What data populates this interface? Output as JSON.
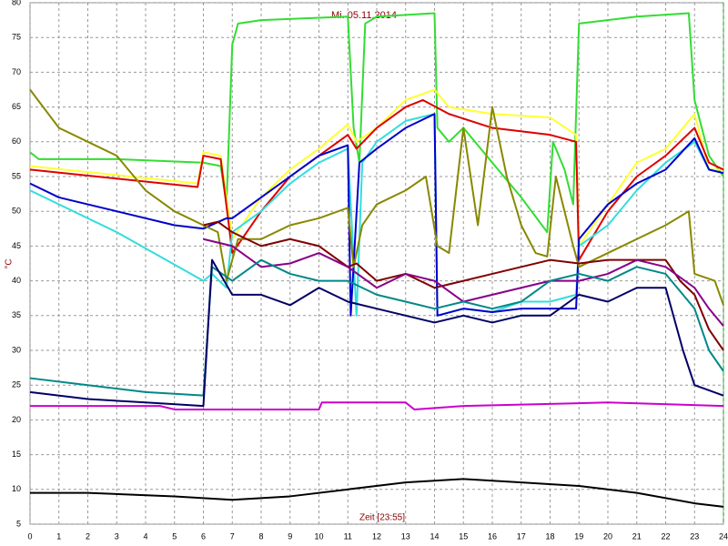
{
  "chart_data": {
    "type": "line",
    "title": "Mi. 05.11.2014",
    "xlabel": "Zeit [23:55]",
    "ylabel": "°C",
    "xlim": [
      0,
      24
    ],
    "ylim": [
      5,
      80
    ],
    "xticks": [
      0,
      1,
      2,
      3,
      4,
      5,
      6,
      7,
      8,
      9,
      10,
      11,
      12,
      13,
      14,
      15,
      16,
      17,
      18,
      19,
      20,
      21,
      22,
      23,
      24
    ],
    "yticks": [
      5,
      10,
      15,
      20,
      25,
      30,
      35,
      40,
      45,
      50,
      55,
      60,
      65,
      70,
      75,
      80
    ],
    "grid": true,
    "series": [
      {
        "color": "#33dd33",
        "x": [
          0,
          0.3,
          3,
          6,
          6.6,
          6.8,
          7.0,
          7.2,
          8,
          11,
          11.2,
          11.4,
          11.6,
          12,
          14,
          14.1,
          14.5,
          15,
          16,
          17,
          17.9,
          18.1,
          18.5,
          18.8,
          19,
          21,
          22.8,
          23,
          23.5,
          24
        ],
        "values": [
          58.5,
          57.5,
          57.5,
          57,
          56.5,
          51,
          74,
          77,
          77.5,
          78,
          62,
          57,
          77,
          78,
          78.5,
          62,
          60,
          62,
          57,
          52,
          47,
          60,
          56,
          51,
          77,
          78,
          78.5,
          66,
          58,
          55
        ]
      },
      {
        "color": "#ffff33",
        "x": [
          0,
          5.8,
          6,
          6.6,
          7,
          8,
          9,
          10,
          11,
          11.3,
          12,
          13,
          14,
          14.5,
          16,
          18,
          18.9,
          19,
          20,
          21,
          22,
          23,
          23.5,
          24
        ],
        "values": [
          56.5,
          54,
          58.5,
          58,
          46,
          52,
          56,
          59,
          62.5,
          60,
          62,
          66,
          67.5,
          65,
          64,
          63.5,
          61,
          45,
          51,
          57,
          59,
          64,
          56,
          56
        ]
      },
      {
        "color": "#dd0000",
        "x": [
          0,
          5.8,
          6,
          6.6,
          7,
          8,
          9,
          10,
          11,
          11.3,
          12,
          13,
          13.6,
          14.5,
          16,
          18,
          18.9,
          19,
          20,
          21,
          22,
          23,
          23.5,
          24
        ],
        "values": [
          56,
          53.5,
          58,
          57.5,
          44,
          50,
          55,
          58,
          61,
          59,
          62,
          65,
          66,
          64,
          62,
          61,
          60,
          43,
          50,
          55,
          58,
          62,
          57,
          56
        ]
      },
      {
        "color": "#33dddd",
        "x": [
          0,
          3,
          6,
          6.3,
          6.8,
          7,
          8,
          9,
          10,
          11,
          11.3,
          11.5,
          12,
          13,
          14,
          14.1,
          15,
          16,
          17,
          18,
          18.9,
          19,
          20,
          21,
          22,
          23,
          23.5,
          24
        ],
        "values": [
          53,
          47,
          40,
          41,
          39,
          47,
          50,
          54,
          57,
          59,
          35,
          57,
          60,
          63,
          64,
          35,
          36,
          35.5,
          37,
          37,
          38,
          45,
          48,
          53,
          57,
          60,
          56,
          55.5
        ]
      },
      {
        "color": "#0000cc",
        "x": [
          0,
          1,
          3,
          5,
          6,
          6.8,
          7,
          8,
          9,
          10,
          11,
          11.1,
          11.4,
          12,
          13,
          14,
          14.1,
          15,
          16,
          17,
          18,
          18.9,
          19,
          20,
          21,
          22,
          23,
          23.5,
          24
        ],
        "values": [
          54,
          52,
          50,
          48,
          47.5,
          49,
          49,
          52,
          55,
          58,
          59.5,
          35,
          57,
          59,
          62,
          64,
          35,
          36,
          35.5,
          36,
          36,
          36,
          46,
          51,
          54,
          56,
          60.5,
          56,
          55.5
        ]
      },
      {
        "color": "#888800",
        "x": [
          0,
          1,
          2,
          3,
          4,
          5,
          6,
          6.5,
          6.8,
          7.2,
          8,
          9,
          10,
          11,
          11.2,
          11.5,
          12,
          13,
          13.7,
          14.1,
          14.5,
          15,
          15.5,
          16,
          16.5,
          17,
          17.5,
          17.9,
          18.2,
          18.8,
          19,
          20,
          21,
          22,
          22.8,
          23,
          23.7,
          24
        ],
        "values": [
          67.5,
          62,
          60,
          58,
          53,
          50,
          48,
          47,
          40,
          46,
          46,
          48,
          49,
          50.5,
          42,
          48,
          51,
          53,
          55,
          45,
          44,
          62,
          48,
          65,
          55,
          48,
          44,
          43.5,
          55,
          45,
          42,
          44,
          46,
          48,
          50,
          41,
          40,
          36.5
        ]
      },
      {
        "color": "#800000",
        "x": [
          6,
          6.5,
          7,
          8,
          9,
          10,
          11,
          11.3,
          12,
          13,
          14,
          15,
          16,
          17,
          18,
          19,
          20,
          21,
          22,
          22.5,
          23,
          23.5,
          24
        ],
        "values": [
          48,
          48.5,
          47,
          45,
          46,
          45,
          42,
          42.5,
          40,
          41,
          39,
          40,
          41,
          42,
          43,
          42.5,
          43,
          43,
          43,
          40,
          38,
          33,
          30
        ]
      },
      {
        "color": "#880088",
        "x": [
          6,
          7,
          8,
          9,
          10,
          11,
          12,
          13,
          14,
          15,
          16,
          17,
          18,
          19,
          20,
          21,
          22,
          23,
          23.5,
          24
        ],
        "values": [
          46,
          45,
          42,
          42.5,
          44,
          42,
          39,
          41,
          40,
          37,
          38,
          39,
          40,
          40,
          41,
          43,
          42,
          39,
          36,
          33.5
        ]
      },
      {
        "color": "#008888",
        "x": [
          0,
          2,
          4,
          6,
          6.3,
          7,
          8,
          9,
          10,
          11,
          12,
          13,
          14,
          15,
          16,
          17,
          18,
          19,
          20,
          21,
          22,
          23,
          23.5,
          24
        ],
        "values": [
          26,
          25,
          24,
          23.5,
          42,
          40,
          43,
          41,
          40,
          40,
          38,
          37,
          36,
          37,
          36,
          37,
          40,
          41,
          40,
          42,
          41,
          36,
          30,
          27
        ]
      },
      {
        "color": "#000066",
        "x": [
          0,
          2,
          4,
          6,
          6.3,
          7,
          8,
          9,
          10,
          11,
          12,
          13,
          14,
          15,
          16,
          17,
          18,
          19,
          20,
          21,
          22,
          22.6,
          23,
          24
        ],
        "values": [
          24,
          23,
          22.5,
          22,
          43,
          38,
          38,
          36.5,
          39,
          37,
          36,
          35,
          34,
          35,
          34,
          35,
          35,
          38,
          37,
          39,
          39,
          30,
          25,
          23.5
        ]
      },
      {
        "color": "#cc00cc",
        "x": [
          0,
          4.5,
          5,
          10,
          10.1,
          13,
          13.3,
          15,
          20,
          24
        ],
        "values": [
          22,
          22,
          21.5,
          21.5,
          22.5,
          22.5,
          21.5,
          22,
          22.5,
          22
        ]
      },
      {
        "color": "#000000",
        "x": [
          0,
          2,
          5,
          7,
          9,
          11,
          13,
          15,
          17,
          19,
          21,
          23,
          24
        ],
        "values": [
          9.5,
          9.5,
          9,
          8.5,
          9,
          10,
          11,
          11.5,
          11,
          10.5,
          9.5,
          8,
          7.5
        ]
      }
    ]
  }
}
